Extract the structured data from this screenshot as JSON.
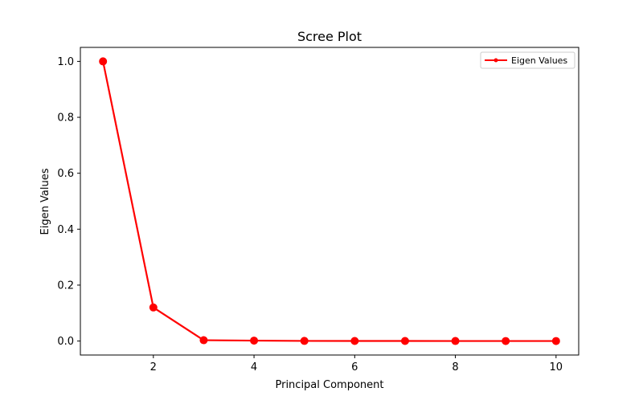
{
  "chart_data": {
    "type": "line",
    "title": "Scree Plot",
    "xlabel": "Principal Component",
    "ylabel": "Eigen Values",
    "x": [
      1,
      2,
      3,
      4,
      5,
      6,
      7,
      8,
      9,
      10
    ],
    "series": [
      {
        "name": "Eigen Values",
        "color": "#ff0000",
        "marker": "circle",
        "values": [
          1.0,
          0.12,
          0.003,
          0.0015,
          0.0005,
          0.0003,
          0.0002,
          0.0001,
          5e-05,
          2e-05
        ]
      }
    ],
    "xticks": [
      2,
      4,
      6,
      8,
      10
    ],
    "yticks": [
      0.0,
      0.2,
      0.4,
      0.6,
      0.8,
      1.0
    ],
    "xtick_labels": [
      "2",
      "4",
      "6",
      "8",
      "10"
    ],
    "ytick_labels": [
      "0.0",
      "0.2",
      "0.4",
      "0.6",
      "0.8",
      "1.0"
    ],
    "xlim": [
      0.55,
      10.45
    ],
    "ylim": [
      -0.05,
      1.05
    ],
    "grid": false,
    "legend_position": "top-right"
  }
}
